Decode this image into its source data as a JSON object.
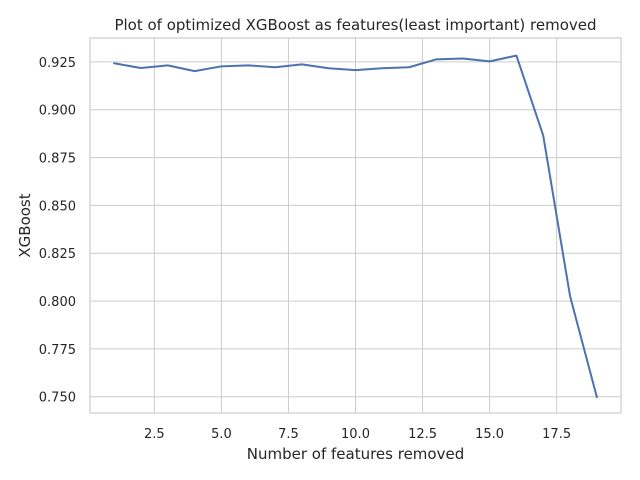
{
  "chart_data": {
    "type": "line",
    "title": "Plot of optimized XGBoost as features(least important) removed",
    "xlabel": "Number of features removed",
    "ylabel": "XGBoost",
    "xlim": [
      0.1,
      19.9
    ],
    "ylim": [
      0.7415,
      0.9375
    ],
    "xticks": [
      2.5,
      5.0,
      7.5,
      10.0,
      12.5,
      15.0,
      17.5
    ],
    "xtick_labels": [
      "2.5",
      "5.0",
      "7.5",
      "10.0",
      "12.5",
      "15.0",
      "17.5"
    ],
    "yticks": [
      0.75,
      0.775,
      0.8,
      0.825,
      0.85,
      0.875,
      0.9,
      0.925
    ],
    "ytick_labels": [
      "0.750",
      "0.775",
      "0.800",
      "0.825",
      "0.850",
      "0.875",
      "0.900",
      "0.925"
    ],
    "grid": true,
    "series": [
      {
        "color": "#4c72b0",
        "x": [
          1,
          2,
          3,
          4,
          5,
          6,
          7,
          8,
          9,
          10,
          11,
          12,
          13,
          14,
          15,
          16,
          17,
          18,
          19
        ],
        "y": [
          0.9243,
          0.9218,
          0.9232,
          0.9202,
          0.9227,
          0.9232,
          0.9222,
          0.9237,
          0.9217,
          0.9207,
          0.9217,
          0.9222,
          0.9263,
          0.9268,
          0.9253,
          0.9283,
          0.8865,
          0.8026,
          0.7498
        ]
      }
    ]
  }
}
